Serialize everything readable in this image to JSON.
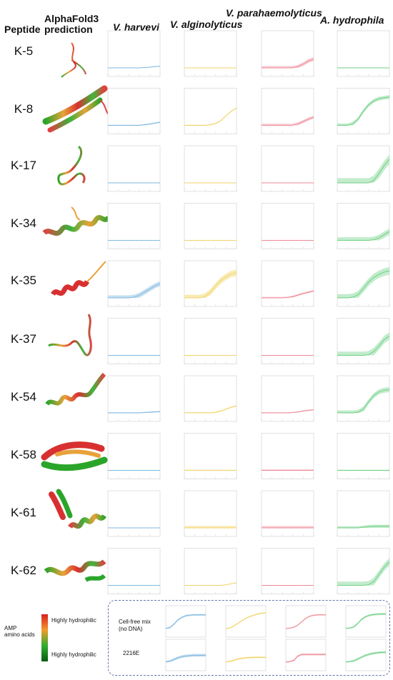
{
  "headers": {
    "peptide": "Peptide",
    "prediction": "AlphaFold3\nprediction",
    "species": [
      "V. harveyi",
      "V. alginolyticus",
      "V. parahaemolyticus",
      "A. hydrophila"
    ]
  },
  "colors": {
    "series": [
      "#7fb8e0",
      "#f2d36b",
      "#ee8a96",
      "#6ecf82"
    ],
    "bands": [
      "#bcd9ef",
      "#f8e8a8",
      "#f7c6cc",
      "#b9e9c4"
    ]
  },
  "legend": {
    "title": "AMP\namino acids",
    "top_label": "Highly hydrophilic",
    "bottom_label": "Highly hydrophilic"
  },
  "controls": {
    "labels": [
      "Cell-free mix\n(no DNA)",
      "2216E"
    ]
  },
  "chart_data": {
    "type": "line",
    "x": [
      0,
      1,
      2,
      3,
      4,
      5,
      6,
      7,
      8,
      9,
      10
    ],
    "ylim": [
      0,
      1
    ],
    "peptides": [
      {
        "label": "K-5",
        "curves": [
          [
            0,
            0,
            0,
            0,
            0,
            0,
            0,
            0.01,
            0.02,
            0.04,
            0.05
          ],
          [
            0,
            0,
            0,
            0,
            0,
            0,
            0,
            0,
            0,
            0,
            0
          ],
          [
            0,
            0,
            0,
            0,
            0,
            0,
            0,
            0.04,
            0.12,
            0.22,
            0.28
          ],
          [
            0,
            0,
            0,
            0,
            0,
            0,
            0,
            0,
            0,
            0,
            0
          ]
        ],
        "bands": [
          0.01,
          0.01,
          0.06,
          0.01
        ]
      },
      {
        "label": "K-8",
        "curves": [
          [
            0,
            0,
            0,
            0,
            0,
            0,
            0,
            0.02,
            0.04,
            0.07,
            0.1
          ],
          [
            0,
            0,
            0,
            0,
            0,
            0.02,
            0.06,
            0.15,
            0.3,
            0.45,
            0.55
          ],
          [
            0,
            0,
            0,
            0,
            0,
            0,
            0,
            0.05,
            0.12,
            0.2,
            0.26
          ],
          [
            0,
            0,
            0,
            0.05,
            0.2,
            0.45,
            0.65,
            0.78,
            0.85,
            0.88,
            0.9
          ]
        ],
        "bands": [
          0.02,
          0.02,
          0.05,
          0.06
        ]
      },
      {
        "label": "K-17",
        "curves": [
          [
            0,
            0,
            0,
            0,
            0,
            0,
            0,
            0,
            0,
            0,
            0
          ],
          [
            0,
            0,
            0,
            0,
            0,
            0,
            0,
            0,
            0,
            0,
            0
          ],
          [
            0,
            0,
            0,
            0,
            0,
            0,
            0,
            0,
            0,
            0,
            0
          ],
          [
            0,
            0,
            0,
            0,
            0,
            0,
            0,
            0.08,
            0.3,
            0.55,
            0.75
          ]
        ],
        "bands": [
          0.01,
          0.01,
          0.01,
          0.15
        ]
      },
      {
        "label": "K-34",
        "curves": [
          [
            0,
            0,
            0,
            0,
            0,
            0,
            0,
            0,
            0,
            0,
            0
          ],
          [
            0,
            0,
            0,
            0,
            0,
            0,
            0,
            0,
            0,
            0,
            0
          ],
          [
            0,
            0,
            0,
            0,
            0,
            0,
            0,
            0,
            0,
            0,
            0
          ],
          [
            0,
            0,
            0,
            0,
            0,
            0,
            0,
            0.02,
            0.08,
            0.18,
            0.28
          ]
        ],
        "bands": [
          0.01,
          0.01,
          0.01,
          0.1
        ]
      },
      {
        "label": "K-35",
        "curves": [
          [
            0,
            0,
            0,
            0,
            0,
            0.02,
            0.08,
            0.18,
            0.28,
            0.38,
            0.45
          ],
          [
            0,
            0,
            0,
            0,
            0.05,
            0.18,
            0.38,
            0.55,
            0.67,
            0.76,
            0.8
          ],
          [
            0,
            0,
            0,
            0,
            0,
            0.01,
            0.04,
            0.09,
            0.14,
            0.18,
            0.22
          ],
          [
            0,
            0,
            0,
            0.02,
            0.1,
            0.3,
            0.5,
            0.65,
            0.75,
            0.82,
            0.86
          ]
        ],
        "bands": [
          0.08,
          0.1,
          0.03,
          0.12
        ]
      },
      {
        "label": "K-37",
        "curves": [
          [
            0,
            0,
            0,
            0,
            0,
            0,
            0,
            0,
            0,
            0,
            0
          ],
          [
            0,
            0,
            0,
            0,
            0,
            0,
            0,
            0,
            0,
            0,
            0
          ],
          [
            0,
            0,
            0,
            0,
            0,
            0,
            0,
            0,
            0,
            0,
            0
          ],
          [
            0,
            0,
            0,
            0,
            0,
            0,
            0.02,
            0.12,
            0.3,
            0.5,
            0.62
          ]
        ],
        "bands": [
          0.01,
          0.01,
          0.01,
          0.12
        ]
      },
      {
        "label": "K-54",
        "curves": [
          [
            0,
            0,
            0,
            0,
            0,
            0,
            0,
            0.01,
            0.02,
            0.03,
            0.04
          ],
          [
            0,
            0,
            0,
            0,
            0,
            0,
            0.02,
            0.06,
            0.12,
            0.18,
            0.22
          ],
          [
            0,
            0,
            0,
            0,
            0,
            0,
            0.01,
            0.03,
            0.06,
            0.08,
            0.1
          ],
          [
            0,
            0,
            0,
            0,
            0.02,
            0.12,
            0.35,
            0.55,
            0.67,
            0.72,
            0.74
          ]
        ],
        "bands": [
          0.02,
          0.02,
          0.02,
          0.08
        ]
      },
      {
        "label": "K-58",
        "curves": [
          [
            0,
            0,
            0,
            0,
            0,
            0,
            0,
            0,
            0,
            0,
            0
          ],
          [
            0,
            0,
            0,
            0,
            0,
            0,
            0,
            0,
            0,
            0,
            0
          ],
          [
            0,
            0,
            0,
            0,
            0,
            0,
            0,
            0,
            0,
            0,
            0
          ],
          [
            0,
            0,
            0,
            0,
            0,
            0,
            0,
            0,
            0,
            0,
            0
          ]
        ],
        "bands": [
          0.01,
          0.02,
          0.03,
          0.02
        ]
      },
      {
        "label": "K-61",
        "curves": [
          [
            0,
            0,
            0,
            0,
            0,
            0,
            0,
            0,
            0,
            0,
            0
          ],
          [
            0,
            0,
            0,
            0,
            0,
            0,
            0,
            0,
            0,
            0,
            0
          ],
          [
            0,
            0,
            0,
            0,
            0,
            0,
            0,
            0,
            0,
            0,
            0
          ],
          [
            0,
            0,
            0,
            0,
            0,
            0.02,
            0.04,
            0.05,
            0.05,
            0.05,
            0.05
          ]
        ],
        "bands": [
          0.01,
          0.06,
          0.06,
          0.05
        ]
      },
      {
        "label": "K-62",
        "curves": [
          [
            0,
            0,
            0,
            0,
            0,
            0,
            0,
            0,
            0,
            0,
            0
          ],
          [
            0,
            0,
            0,
            0,
            0,
            0,
            0,
            0,
            0.02,
            0.05,
            0.08
          ],
          [
            0,
            0,
            0,
            0,
            0,
            0,
            0,
            0,
            0,
            0,
            0
          ],
          [
            0,
            0,
            0,
            0,
            0,
            0,
            0.02,
            0.12,
            0.35,
            0.58,
            0.75
          ]
        ],
        "bands": [
          0.01,
          0.01,
          0.01,
          0.12
        ]
      }
    ],
    "controls": [
      {
        "label": "Cell-free mix\n(no DNA)",
        "curves": [
          [
            0,
            0.05,
            0.25,
            0.5,
            0.65,
            0.75,
            0.78,
            0.8,
            0.8,
            0.8,
            0.8
          ],
          [
            0,
            0.03,
            0.15,
            0.3,
            0.45,
            0.6,
            0.7,
            0.78,
            0.85,
            0.9,
            0.92
          ],
          [
            0,
            0.02,
            0.08,
            0.2,
            0.4,
            0.6,
            0.72,
            0.78,
            0.8,
            0.8,
            0.8
          ],
          [
            0,
            0.02,
            0.1,
            0.3,
            0.55,
            0.7,
            0.78,
            0.82,
            0.84,
            0.85,
            0.85
          ]
        ],
        "bands": [
          0.05,
          0.04,
          0.04,
          0.06
        ]
      },
      {
        "label": "2216E",
        "curves": [
          [
            0,
            0.05,
            0.15,
            0.25,
            0.32,
            0.36,
            0.38,
            0.4,
            0.4,
            0.4,
            0.4
          ],
          [
            0,
            0.04,
            0.1,
            0.18,
            0.22,
            0.25,
            0.27,
            0.28,
            0.28,
            0.28,
            0.28
          ],
          [
            0,
            0.02,
            0.1,
            0.35,
            0.45,
            0.45,
            0.45,
            0.45,
            0.45,
            0.45,
            0.45
          ],
          [
            0,
            0.02,
            0.08,
            0.18,
            0.3,
            0.4,
            0.47,
            0.52,
            0.55,
            0.57,
            0.58
          ]
        ],
        "bands": [
          0.08,
          0.05,
          0.06,
          0.07
        ]
      }
    ]
  }
}
